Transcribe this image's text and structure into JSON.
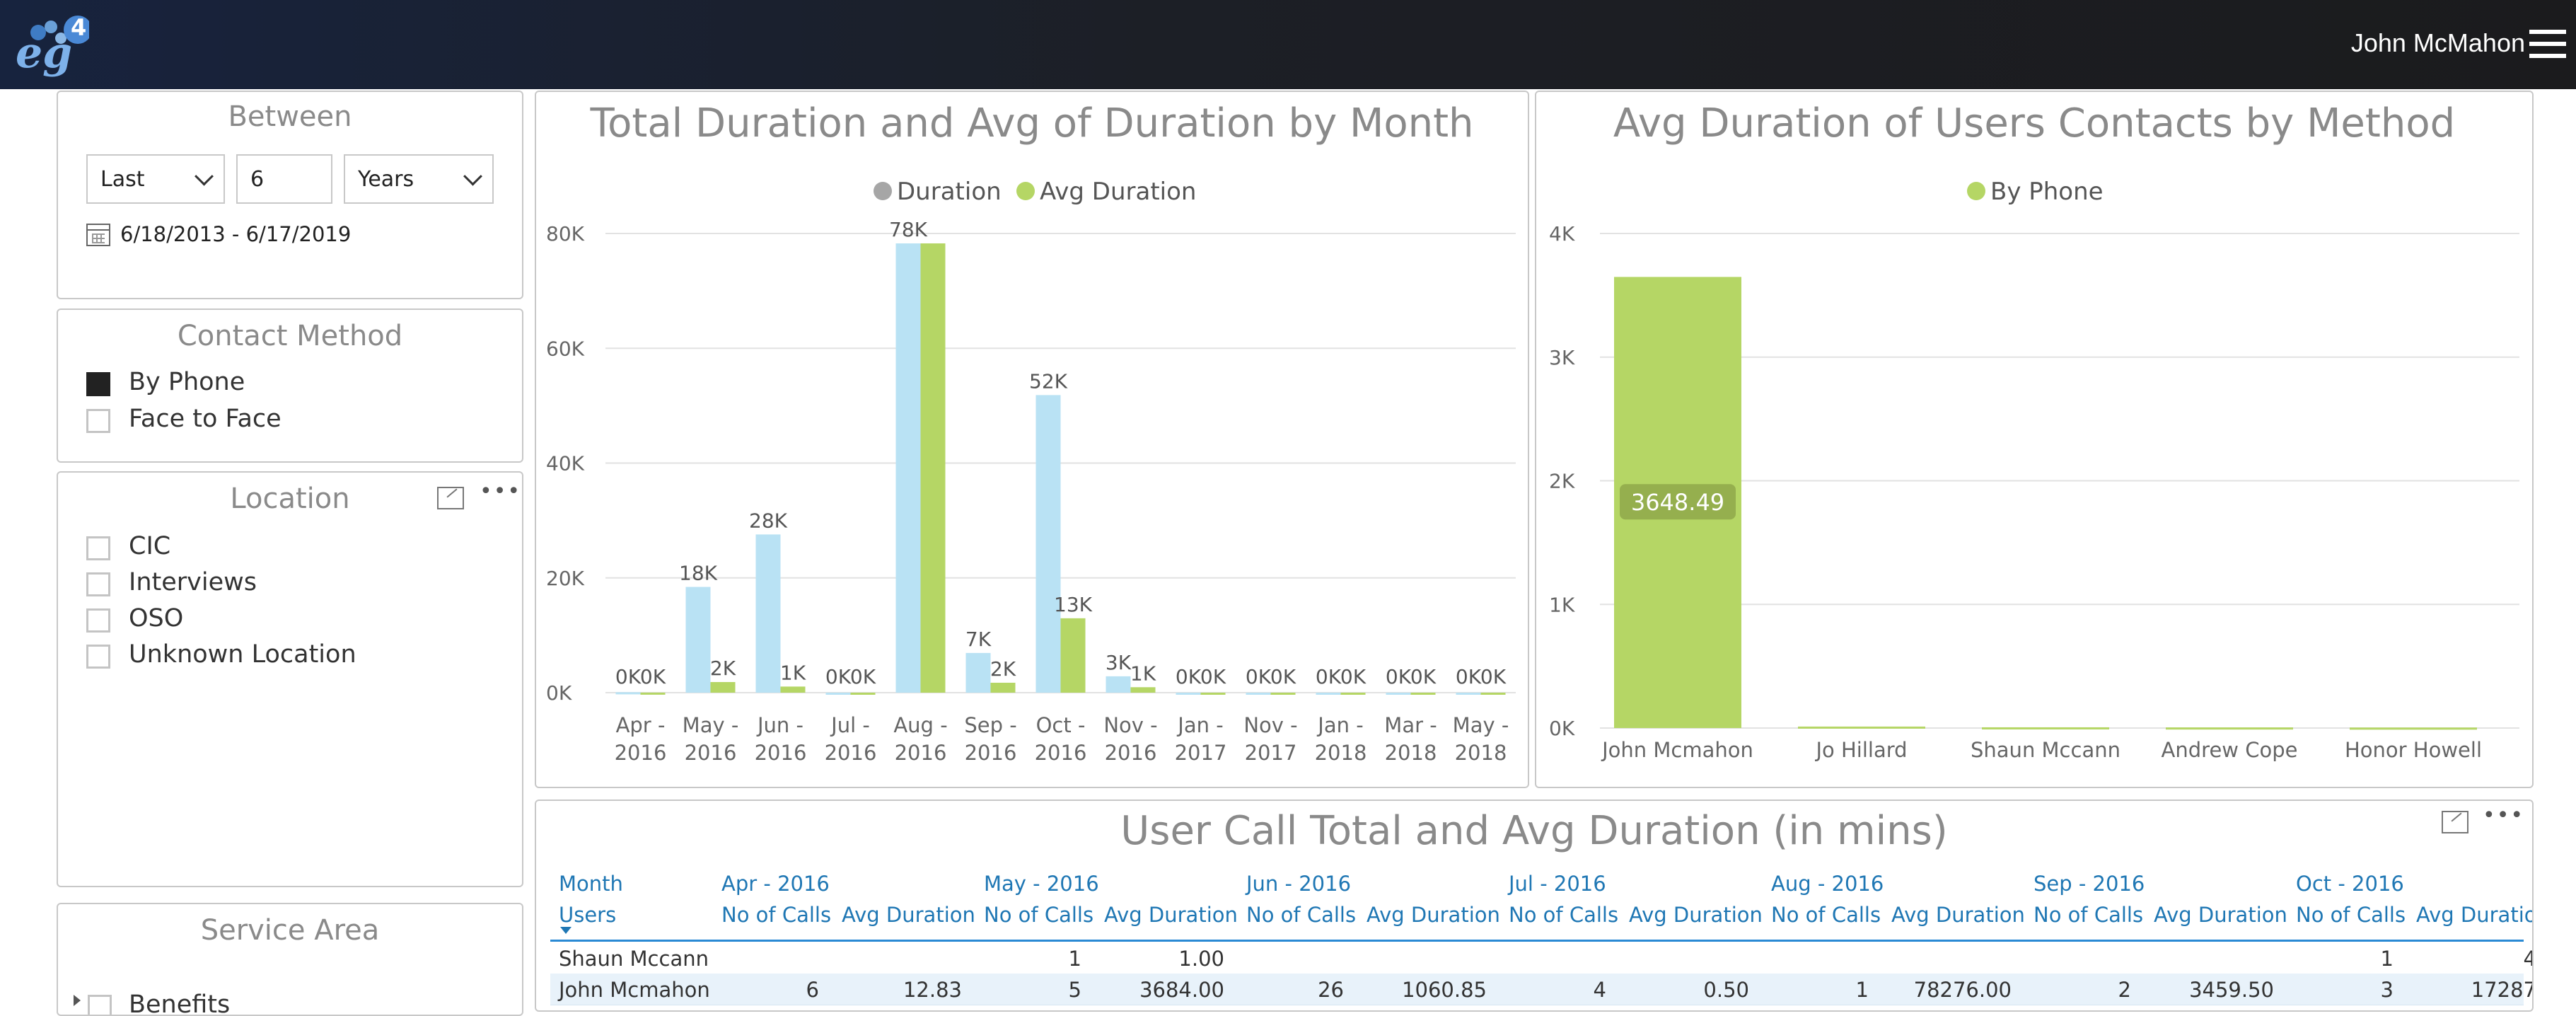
{
  "header": {
    "logo_text": "eg",
    "logo_badge": "4",
    "user_name": "John McMahon",
    "menu_icon": "hamburger-icon"
  },
  "between": {
    "title": "Between",
    "mode": "Last",
    "count": "6",
    "unit": "Years",
    "date_range": "6/18/2013 - 6/17/2019",
    "calendar_icon": "calendar-icon"
  },
  "contact_method": {
    "title": "Contact Method",
    "items": [
      {
        "label": "By Phone",
        "checked": true
      },
      {
        "label": "Face to Face",
        "checked": false
      }
    ]
  },
  "location": {
    "title": "Location",
    "items": [
      {
        "label": "CIC"
      },
      {
        "label": "Interviews"
      },
      {
        "label": "OSO"
      },
      {
        "label": "Unknown Location"
      }
    ],
    "focus_icon": "focus-mode-icon",
    "more_icon": "more-options-icon"
  },
  "service_area": {
    "title": "Service Area",
    "items": [
      {
        "label": "Benefits"
      }
    ]
  },
  "chart1": {
    "title": "Total Duration and Avg of Duration by Month"
  },
  "chart2": {
    "title": "Avg Duration of Users Contacts by Method"
  },
  "chart_data": [
    {
      "type": "bar",
      "title": "Total Duration and Avg of Duration by Month",
      "categories": [
        "Apr - 2016",
        "May - 2016",
        "Jun - 2016",
        "Jul - 2016",
        "Aug - 2016",
        "Sep - 2016",
        "Oct - 2016",
        "Nov - 2016",
        "Jan - 2017",
        "Nov - 2017",
        "Jan - 2018",
        "Mar - 2018",
        "May - 2018"
      ],
      "series": [
        {
          "name": "Duration",
          "color": "#b9e2f4",
          "legend_color": "#a6a6a6",
          "values": [
            77,
            18420,
            27563,
            2,
            78276,
            6919,
            51848,
            2850,
            0,
            0,
            0,
            0,
            0
          ],
          "labels": [
            "0K",
            "18K",
            "28K",
            "0K",
            "78K",
            "7K",
            "52K",
            "3K",
            "0K",
            "0K",
            "0K",
            "0K",
            "0K"
          ]
        },
        {
          "name": "Avg Duration",
          "color": "#b5d665",
          "legend_color": "#b5d665",
          "values": [
            13,
            1850,
            1060,
            1,
            78276,
            1730,
            12960,
            950,
            0,
            0,
            0,
            0,
            0
          ],
          "labels": [
            "0K",
            "2K",
            "1K",
            "0K",
            "",
            "2K",
            "13K",
            "1K",
            "0K",
            "0K",
            "0K",
            "0K",
            "0K"
          ]
        }
      ],
      "ylim": [
        0,
        80000
      ],
      "yticks": [
        "0K",
        "20K",
        "40K",
        "60K",
        "80K"
      ],
      "grid": true,
      "legend": "top-center"
    },
    {
      "type": "bar",
      "title": "Avg Duration of Users Contacts by Method",
      "categories": [
        "John Mcmahon",
        "Jo Hillard",
        "Shaun Mccann",
        "Andrew Cope",
        "Honor Howell"
      ],
      "series": [
        {
          "name": "By Phone",
          "color": "#b5d665",
          "values": [
            3648.49,
            12,
            6,
            5,
            4
          ],
          "labels": [
            "3648.49",
            "",
            "",
            "",
            ""
          ]
        }
      ],
      "ylim": [
        0,
        4000
      ],
      "yticks": [
        "0K",
        "1K",
        "2K",
        "3K",
        "4K"
      ],
      "grid": true,
      "legend": "top-center"
    }
  ],
  "table": {
    "title": "User Call Total and Avg Duration (in mins)",
    "row_header_top": "Month",
    "row_header_bottom": "Users",
    "months": [
      "Apr - 2016",
      "May - 2016",
      "Jun - 2016",
      "Jul - 2016",
      "Aug - 2016",
      "Sep - 2016",
      "Oct - 2016"
    ],
    "sub_headers": [
      "No of Calls",
      "Avg Duration"
    ],
    "rows": [
      {
        "user": "Shaun Mccann",
        "cells": [
          "",
          "",
          "1",
          "1.00",
          "",
          "",
          "",
          "",
          "",
          "",
          "",
          "",
          "1",
          "4"
        ]
      },
      {
        "user": "John Mcmahon",
        "cells": [
          "6",
          "12.83",
          "5",
          "3684.00",
          "26",
          "1060.85",
          "4",
          "0.50",
          "1",
          "78276.00",
          "2",
          "3459.50",
          "3",
          "17287"
        ]
      }
    ]
  }
}
